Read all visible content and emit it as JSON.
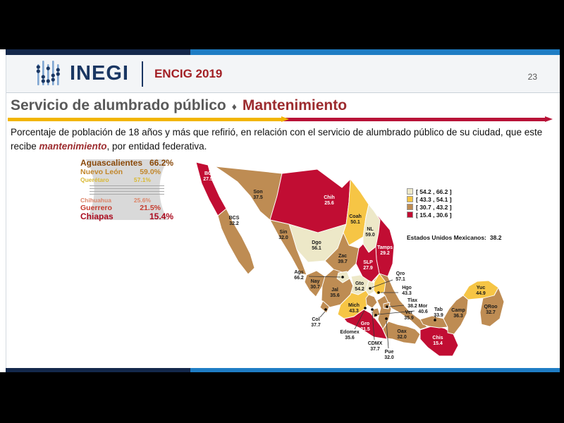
{
  "header": {
    "brand": "INEGI",
    "survey": "ENCIG 2019",
    "page_number": "23"
  },
  "title": {
    "main": "Servicio de alumbrado público",
    "separator": "♦",
    "highlight": "Mantenimiento"
  },
  "subtitle": {
    "before": "Porcentaje de población de 18 años y más que refirió, en relación con el servicio de alumbrado público de su ciudad, que este recibe ",
    "emphasis": "mantenimiento",
    "after": ", por entidad federativa."
  },
  "ranking": {
    "top": [
      {
        "name": "Aguascalientes",
        "pct": "66.2%",
        "color": "#8A4A0B",
        "tier": "t1"
      },
      {
        "name": "Nuevo León",
        "pct": "59.0%",
        "color": "#C1862B",
        "tier": "t2"
      },
      {
        "name": "Querétaro",
        "pct": "57.1%",
        "color": "#D9B832",
        "tier": "t3"
      }
    ],
    "divider_lines": 4,
    "bottom": [
      {
        "name": "Chihuahua",
        "pct": "25.6%",
        "color": "#DC8468",
        "tier": "t3"
      },
      {
        "name": "Guerrero",
        "pct": "21.5%",
        "color": "#C53B2E",
        "tier": "t2"
      },
      {
        "name": "Chiapas",
        "pct": "15.4%",
        "color": "#AA0A1E",
        "tier": "t1"
      }
    ]
  },
  "legend": {
    "items": [
      {
        "label": "[ 54.2 , 66.2 ]",
        "color": "#EDE8C8"
      },
      {
        "label": "[ 43.3 , 54.1 ]",
        "color": "#F6C545"
      },
      {
        "label": "[ 30.7 , 43.2 ]",
        "color": "#BE8C53"
      },
      {
        "label": "[ 15.4 , 30.6 ]",
        "color": "#C10D33"
      }
    ],
    "national_label": "Estados Unidos Mexicanos:",
    "national_value": "38.2"
  },
  "chart_data": {
    "type": "choropleth_map",
    "region": "Mexico",
    "title": "Servicio de alumbrado público - Mantenimiento",
    "unit": "porcentaje de población de 18 años y más",
    "national": {
      "name": "Estados Unidos Mexicanos",
      "value": 38.2
    },
    "classes": [
      {
        "min": 54.2,
        "max": 66.2,
        "color": "#EDE8C8"
      },
      {
        "min": 43.3,
        "max": 54.1,
        "color": "#F6C545"
      },
      {
        "min": 30.7,
        "max": 43.2,
        "color": "#BE8C53"
      },
      {
        "min": 15.4,
        "max": 30.6,
        "color": "#C10D33"
      }
    ],
    "states": [
      {
        "label": "BC",
        "value": "27.5"
      },
      {
        "label": "BCS",
        "value": "32.2"
      },
      {
        "label": "Son",
        "value": "37.5"
      },
      {
        "label": "Chih",
        "value": "25.6"
      },
      {
        "label": "Sin",
        "value": "32.0"
      },
      {
        "label": "Dgo",
        "value": "56.1"
      },
      {
        "label": "Coah",
        "value": "50.1"
      },
      {
        "label": "NL",
        "value": "59.0"
      },
      {
        "label": "Tamps",
        "value": "29.2"
      },
      {
        "label": "Zac",
        "value": "39.7"
      },
      {
        "label": "SLP",
        "value": "27.9"
      },
      {
        "label": "Ags",
        "value": "66.2"
      },
      {
        "label": "Nay",
        "value": "30.7"
      },
      {
        "label": "Jal",
        "value": "35.6"
      },
      {
        "label": "Gto",
        "value": "54.2"
      },
      {
        "label": "Qro",
        "value": "57.1"
      },
      {
        "label": "Hgo",
        "value": "43.3"
      },
      {
        "label": "Mich",
        "value": "43.3"
      },
      {
        "label": "Col",
        "value": "37.7"
      },
      {
        "label": "Edomex",
        "value": "35.6"
      },
      {
        "label": "CDMX",
        "value": "37.7"
      },
      {
        "label": "Mor",
        "value": "40.6"
      },
      {
        "label": "Tlax",
        "value": "38.2"
      },
      {
        "label": "Pue",
        "value": "32.0"
      },
      {
        "label": "Gro",
        "value": "21.5"
      },
      {
        "label": "Ver",
        "value": "35.9"
      },
      {
        "label": "Oax",
        "value": "32.0"
      },
      {
        "label": "Tab",
        "value": "33.9"
      },
      {
        "label": "Chis",
        "value": "15.4"
      },
      {
        "label": "Camp",
        "value": "36.3"
      },
      {
        "label": "Yuc",
        "value": "44.9"
      },
      {
        "label": "QRoo",
        "value": "32.7"
      }
    ]
  }
}
